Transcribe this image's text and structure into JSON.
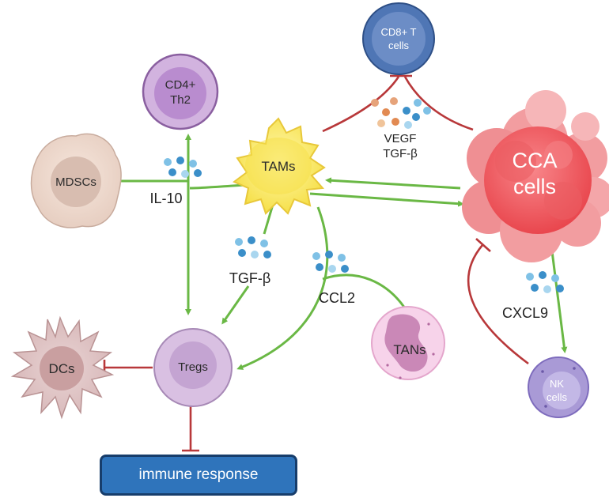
{
  "cells": {
    "cd8": "CD8+ T cells",
    "cd8_line1": "CD8+ T",
    "cd8_line2": "cells",
    "cd4_line1": "CD4+",
    "cd4_line2": "Th2",
    "mdscs": "MDSCs",
    "tams": "TAMs",
    "cca_line1": "CCA",
    "cca_line2": "cells",
    "dcs": "DCs",
    "tregs": "Tregs",
    "tans": "TANs",
    "nk_line1": "NK",
    "nk_line2": "cells"
  },
  "cytokines": {
    "vegf": "VEGF",
    "tgfb_top": "TGF-β",
    "il10": "IL-10",
    "tgfb": "TGF-β",
    "ccl2": "CCL2",
    "cxcl9": "CXCL9"
  },
  "outcome": {
    "label": "immune response"
  },
  "colors": {
    "activation_arrow": "#6ab845",
    "inhibition_line": "#b8383a",
    "immune_box": "#2f74bb"
  }
}
